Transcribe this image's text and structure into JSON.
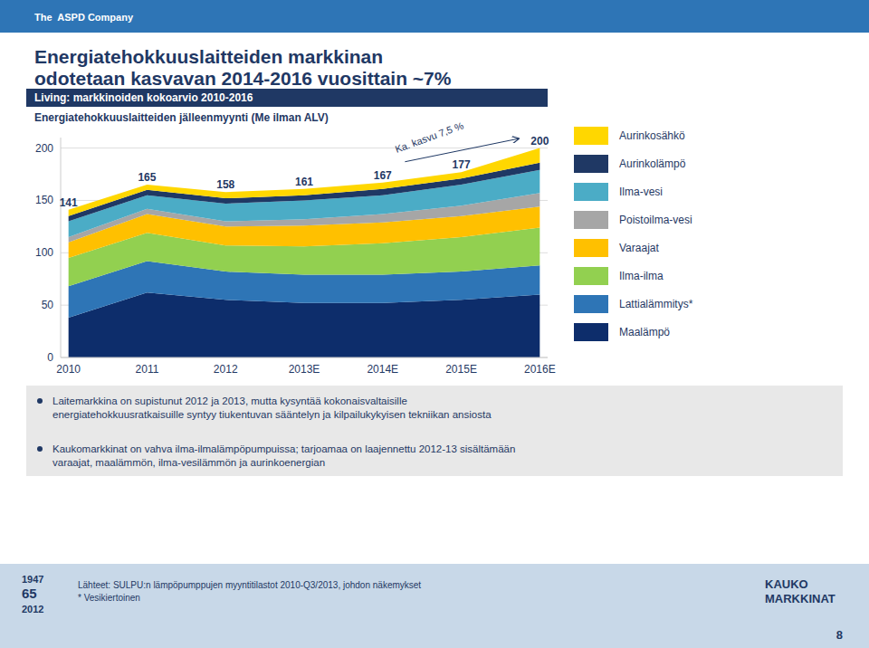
{
  "chart_data": {
    "type": "area",
    "stacked": true,
    "title": "Energiatehokkuuslaitteiden markkinan\nodotetaan kasvavan 2014-2016 vuosittain ~7%",
    "subtitle": "Living: markkinoiden kokoarvio 2010-2016",
    "y_label": "Energiatehokkuuslaitteiden jälleenmyynti (Me ilman ALV)",
    "categories": [
      "2010",
      "2011",
      "2012",
      "2013E",
      "2014E",
      "2015E",
      "2016E"
    ],
    "series": [
      {
        "name": "Maalämpö",
        "color": "#0d2d6b",
        "values": [
          38,
          62,
          55,
          52,
          52,
          55,
          60
        ]
      },
      {
        "name": "Lattialämmitys*",
        "color": "#2e75b6",
        "values": [
          30,
          30,
          27,
          27,
          27,
          27,
          28
        ]
      },
      {
        "name": "Ilma-ilma",
        "color": "#92d050",
        "values": [
          27,
          27,
          25,
          27,
          30,
          33,
          36
        ]
      },
      {
        "name": "Varaajat",
        "color": "#ffc000",
        "values": [
          15,
          18,
          18,
          20,
          20,
          20,
          20
        ]
      },
      {
        "name": "Poistoilma-vesi",
        "color": "#a6a6a6",
        "values": [
          5,
          5,
          5,
          6,
          8,
          10,
          13
        ]
      },
      {
        "name": "Ilma-vesi",
        "color": "#4bacc6",
        "values": [
          15,
          13,
          17,
          18,
          18,
          20,
          22
        ]
      },
      {
        "name": "Aurinkolämpö",
        "color": "#1f3864",
        "values": [
          5,
          5,
          5,
          5,
          6,
          6,
          7
        ]
      },
      {
        "name": "Aurinkosähkö",
        "color": "#ffd700",
        "values": [
          6,
          5,
          6,
          6,
          6,
          6,
          14
        ]
      }
    ],
    "totals": [
      141,
      165,
      158,
      161,
      167,
      177,
      200
    ],
    "annotations": [
      "Ka. kasvu 7,5 %"
    ],
    "ylim": [
      0,
      210
    ],
    "yticks": [
      0,
      50,
      100,
      150,
      200
    ],
    "grid": true,
    "legend": "right"
  },
  "page": {
    "header": "The  ASPD Company",
    "bullets": [
      "Laitemarkkina on supistunut 2012 ja 2013, mutta kysyntää kokonaisvaltaisille\nenergiatehokkuusratkaisuille syntyy tiukentuvan sääntelyn ja kilpailukykyisen tekniikan ansiosta",
      "Kaukomarkkinat on vahva ilma-ilmalämpöpumpuissa; tarjoamaa on laajennettu 2012-13 sisältämään\nvaraajat, maalämmön, ilma-vesilämmön ja aurinkoenergian"
    ],
    "footnote": "Lähteet: SULPU:n lämpöpumppujen myyntitilastot 2010-Q3/2013, johdon näkemykset\n* Vesikiertoinen",
    "badge": [
      "1947",
      "65",
      "2012"
    ],
    "logo": "KAUKO\nMARKKINAT",
    "page_number": "8"
  }
}
